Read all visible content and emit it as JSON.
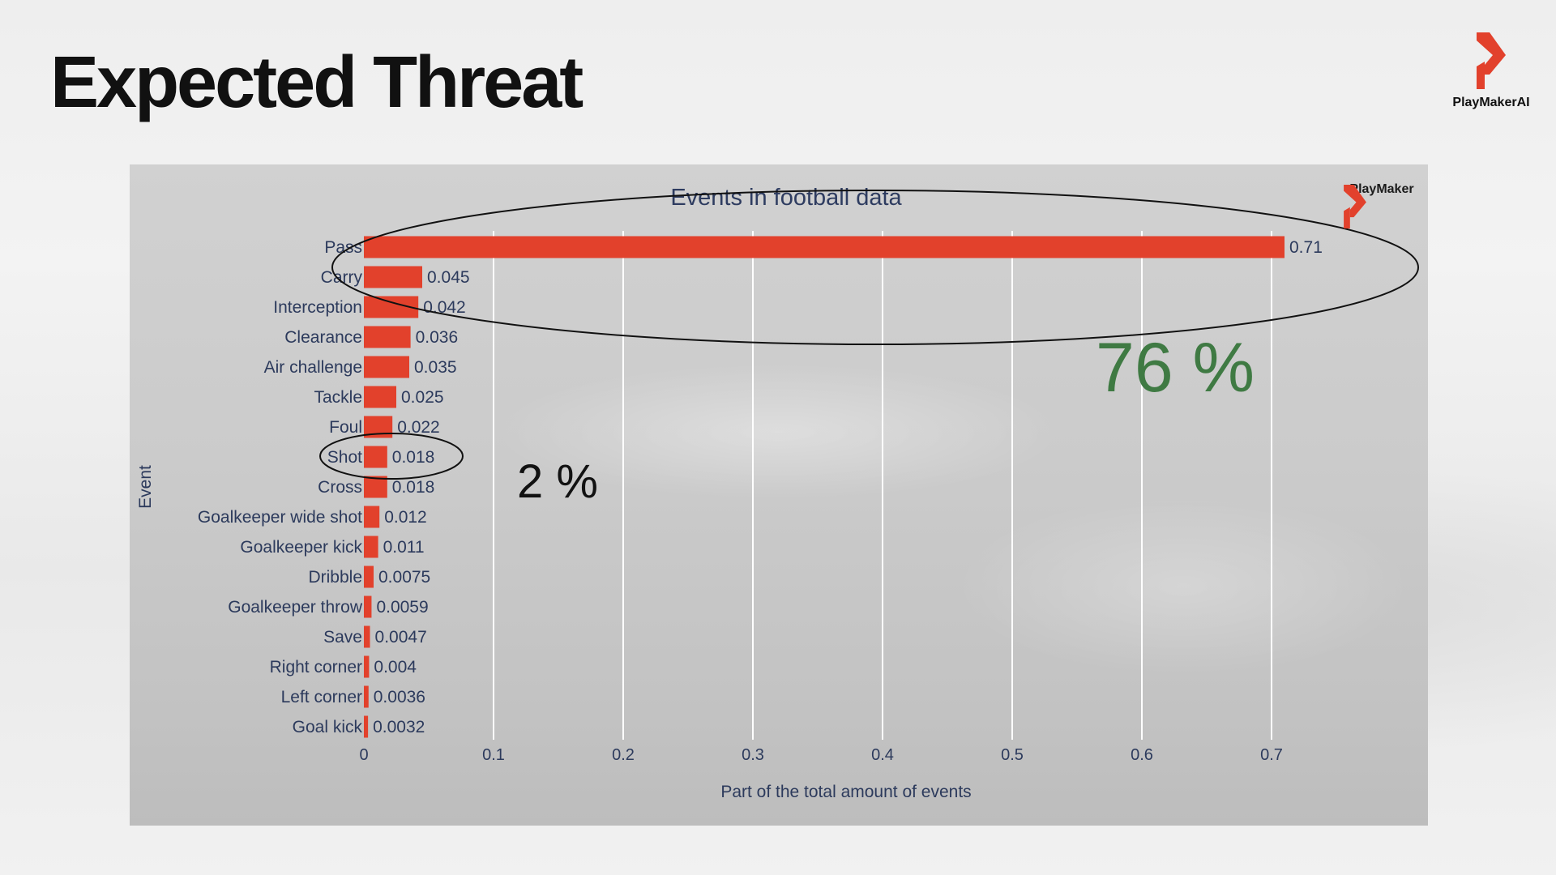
{
  "slide": {
    "title": "Expected Threat",
    "logo_text": "PlayMakerAI"
  },
  "chart_logo_text": "PlayMaker",
  "annotations": {
    "top_group_share": "76 %",
    "shot_share": "2 %"
  },
  "colors": {
    "bar": "#e2412c",
    "axis_text": "#2c3a5c",
    "title_text": "#2e3c60",
    "grid": "#ffffff",
    "annotation_green": "#3f7a43",
    "logo_red": "#e2412c"
  },
  "chart_data": {
    "type": "bar",
    "orientation": "horizontal",
    "title": "Events in football data",
    "xlabel": "Part of the total amount of events",
    "ylabel": "Event",
    "xlim": [
      0,
      0.75
    ],
    "xticks": [
      0,
      0.1,
      0.2,
      0.3,
      0.4,
      0.5,
      0.6,
      0.7
    ],
    "xtick_labels": [
      "0",
      "0.1",
      "0.2",
      "0.3",
      "0.4",
      "0.5",
      "0.6",
      "0.7"
    ],
    "grid": true,
    "categories": [
      "Pass",
      "Carry",
      "Interception",
      "Clearance",
      "Air challenge",
      "Tackle",
      "Foul",
      "Shot",
      "Cross",
      "Goalkeeper wide shot",
      "Goalkeeper kick",
      "Dribble",
      "Goalkeeper throw",
      "Save",
      "Right corner",
      "Left corner",
      "Goal kick"
    ],
    "values": [
      0.71,
      0.045,
      0.042,
      0.036,
      0.035,
      0.025,
      0.022,
      0.018,
      0.018,
      0.012,
      0.011,
      0.0075,
      0.0059,
      0.0047,
      0.004,
      0.0036,
      0.0032
    ],
    "value_labels": [
      "0.71",
      "0.045",
      "0.042",
      "0.036",
      "0.035",
      "0.025",
      "0.022",
      "0.018",
      "0.018",
      "0.012",
      "0.011",
      "0.0075",
      "0.0059",
      "0.0047",
      "0.004",
      "0.0036",
      "0.0032"
    ]
  }
}
